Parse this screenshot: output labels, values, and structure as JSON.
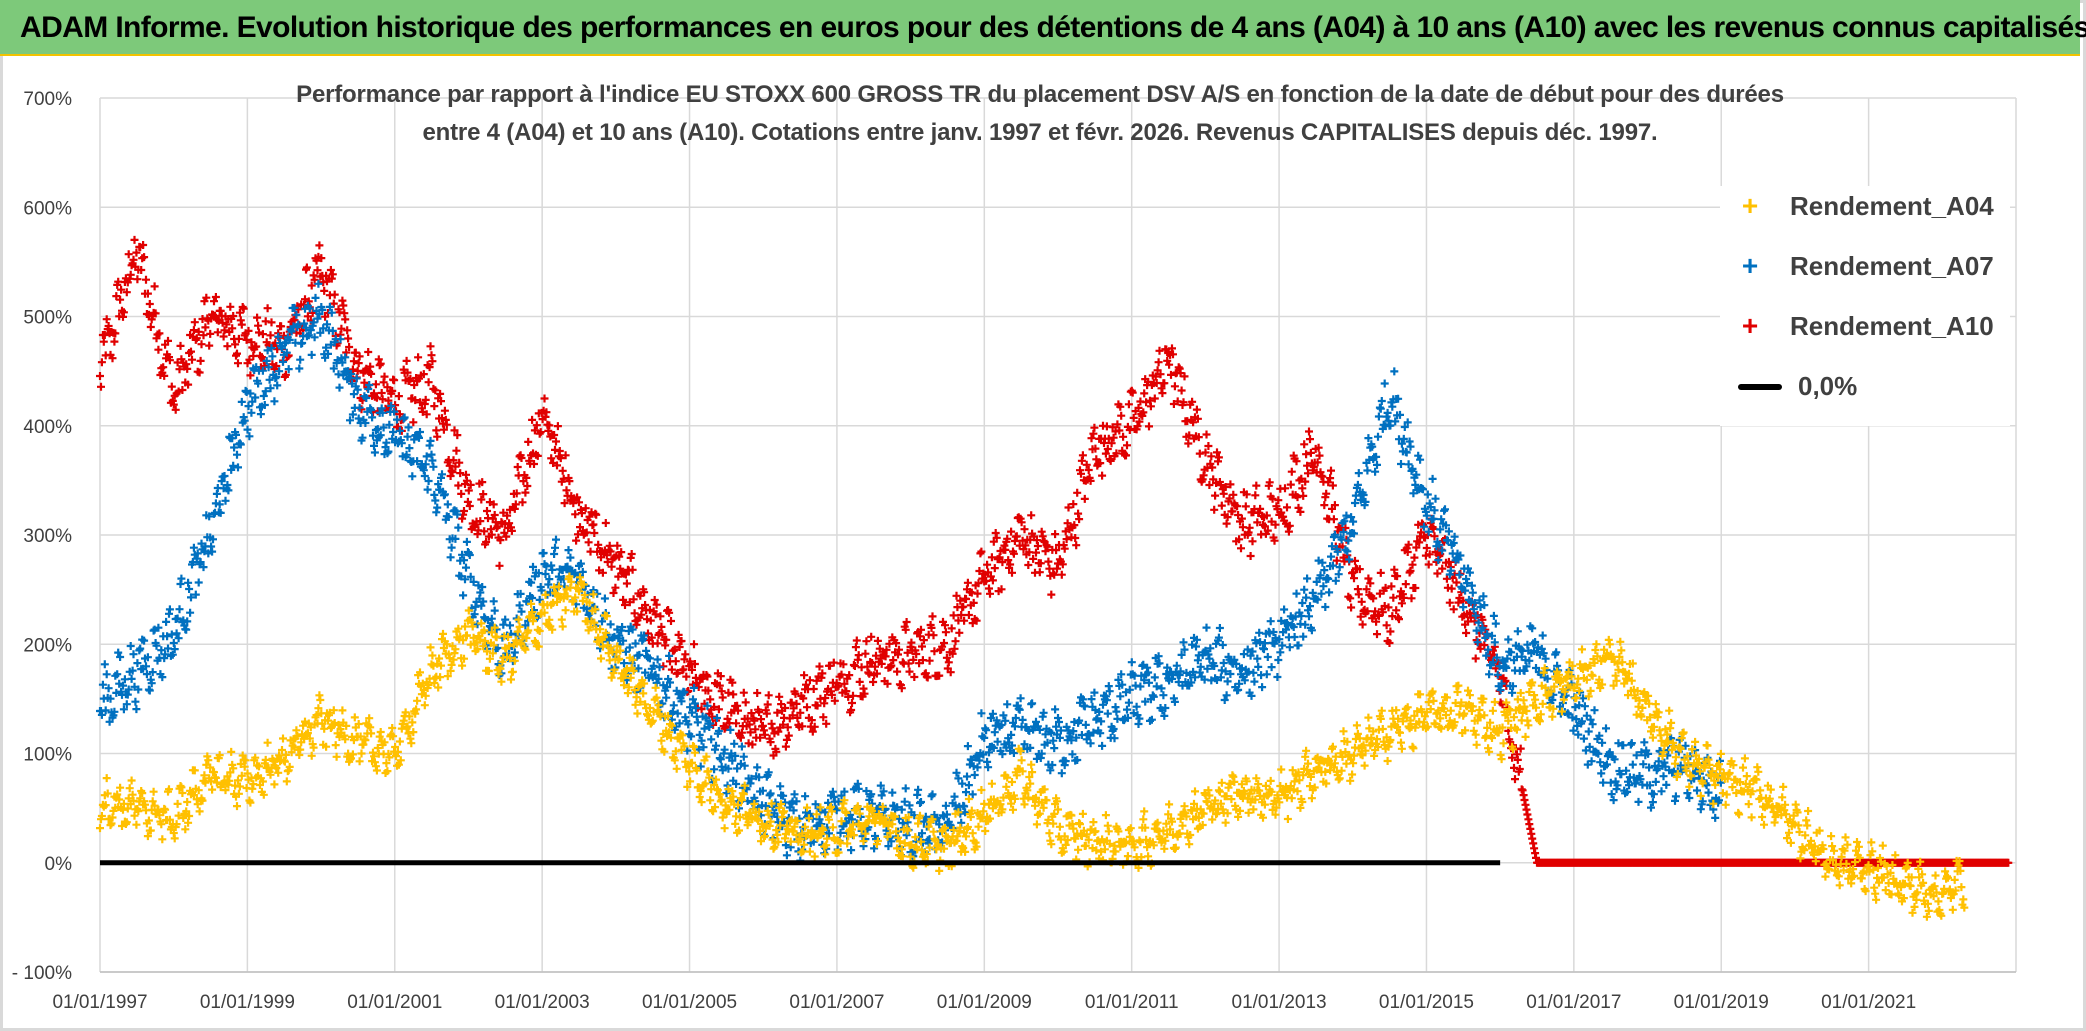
{
  "banner": {
    "title": "ADAM Informe. Evolution historique des performances en euros pour des détentions de 4 ans (A04) à 10 ans (A10) avec les revenus connus capitalisés"
  },
  "chart_data": {
    "type": "scatter",
    "title_line1": "Performance par rapport à l'indice EU STOXX 600 GROSS TR  du placement DSV A/S en fonction de la date de début pour des durées",
    "title_line2": "entre 4 (A04) et 10 ans (A10). Cotations entre janv. 1997 et févr. 2026. Revenus CAPITALISES depuis déc. 1997.",
    "x_ticks": [
      "01/01/1997",
      "01/01/1999",
      "01/01/2001",
      "01/01/2003",
      "01/01/2005",
      "01/01/2007",
      "01/01/2009",
      "01/01/2011",
      "01/01/2013",
      "01/01/2015",
      "01/01/2017",
      "01/01/2019",
      "01/01/2021"
    ],
    "x_range": [
      1997.0,
      2023.0
    ],
    "y_ticks": [
      "700%",
      "600%",
      "500%",
      "400%",
      "300%",
      "200%",
      "100%",
      "0%",
      "- 100%"
    ],
    "y_range": [
      -100,
      700
    ],
    "grid": true,
    "legend_position": "top-right",
    "series": [
      {
        "name": "Rendement_A04",
        "color": "#ffc000",
        "points": [
          [
            1997.0,
            55
          ],
          [
            1997.5,
            50
          ],
          [
            1998.0,
            40
          ],
          [
            1998.5,
            80
          ],
          [
            1999.0,
            75
          ],
          [
            1999.5,
            95
          ],
          [
            2000.0,
            130
          ],
          [
            2000.5,
            110
          ],
          [
            2001.0,
            100
          ],
          [
            2001.5,
            175
          ],
          [
            2002.0,
            210
          ],
          [
            2002.5,
            185
          ],
          [
            2003.0,
            225
          ],
          [
            2003.5,
            250
          ],
          [
            2004.0,
            185
          ],
          [
            2004.5,
            140
          ],
          [
            2005.0,
            90
          ],
          [
            2005.5,
            55
          ],
          [
            2006.0,
            40
          ],
          [
            2006.5,
            25
          ],
          [
            2007.0,
            30
          ],
          [
            2007.5,
            40
          ],
          [
            2008.0,
            20
          ],
          [
            2008.5,
            15
          ],
          [
            2009.0,
            45
          ],
          [
            2009.5,
            80
          ],
          [
            2010.0,
            30
          ],
          [
            2010.5,
            20
          ],
          [
            2011.0,
            15
          ],
          [
            2011.5,
            30
          ],
          [
            2012.0,
            50
          ],
          [
            2012.5,
            65
          ],
          [
            2013.0,
            60
          ],
          [
            2013.5,
            85
          ],
          [
            2014.0,
            100
          ],
          [
            2014.5,
            120
          ],
          [
            2015.0,
            135
          ],
          [
            2015.5,
            140
          ],
          [
            2016.0,
            120
          ],
          [
            2016.5,
            150
          ],
          [
            2017.0,
            165
          ],
          [
            2017.5,
            190
          ],
          [
            2018.0,
            140
          ],
          [
            2018.5,
            95
          ],
          [
            2019.0,
            75
          ],
          [
            2019.5,
            65
          ],
          [
            2020.0,
            35
          ],
          [
            2020.5,
            0
          ],
          [
            2021.0,
            -5
          ],
          [
            2021.5,
            -20
          ],
          [
            2022.0,
            -30
          ],
          [
            2022.3,
            -15
          ]
        ]
      },
      {
        "name": "Rendement_A07",
        "color": "#0070c0",
        "points": [
          [
            1997.0,
            145
          ],
          [
            1997.5,
            175
          ],
          [
            1998.0,
            210
          ],
          [
            1998.5,
            300
          ],
          [
            1999.0,
            420
          ],
          [
            1999.5,
            470
          ],
          [
            2000.0,
            500
          ],
          [
            2000.5,
            420
          ],
          [
            2001.0,
            390
          ],
          [
            2001.5,
            360
          ],
          [
            2002.0,
            260
          ],
          [
            2002.5,
            190
          ],
          [
            2003.0,
            265
          ],
          [
            2003.5,
            260
          ],
          [
            2004.0,
            200
          ],
          [
            2004.5,
            175
          ],
          [
            2005.0,
            130
          ],
          [
            2005.5,
            95
          ],
          [
            2006.0,
            55
          ],
          [
            2006.5,
            30
          ],
          [
            2007.0,
            45
          ],
          [
            2007.5,
            40
          ],
          [
            2008.0,
            35
          ],
          [
            2008.5,
            30
          ],
          [
            2009.0,
            110
          ],
          [
            2009.5,
            120
          ],
          [
            2010.0,
            110
          ],
          [
            2010.5,
            130
          ],
          [
            2011.0,
            150
          ],
          [
            2011.5,
            165
          ],
          [
            2012.0,
            185
          ],
          [
            2012.5,
            175
          ],
          [
            2013.0,
            200
          ],
          [
            2013.5,
            240
          ],
          [
            2014.0,
            310
          ],
          [
            2014.5,
            430
          ],
          [
            2015.0,
            330
          ],
          [
            2015.5,
            260
          ],
          [
            2016.0,
            180
          ],
          [
            2016.5,
            190
          ],
          [
            2017.0,
            140
          ],
          [
            2017.5,
            90
          ],
          [
            2018.0,
            80
          ],
          [
            2018.5,
            90
          ],
          [
            2019.0,
            60
          ]
        ]
      },
      {
        "name": "Rendement_A10",
        "color": "#e00000",
        "points": [
          [
            1997.0,
            450
          ],
          [
            1997.5,
            560
          ],
          [
            1998.0,
            430
          ],
          [
            1998.5,
            500
          ],
          [
            1999.0,
            480
          ],
          [
            1999.5,
            470
          ],
          [
            2000.0,
            540
          ],
          [
            2000.5,
            450
          ],
          [
            2001.0,
            420
          ],
          [
            2001.5,
            440
          ],
          [
            2002.0,
            330
          ],
          [
            2002.5,
            300
          ],
          [
            2003.0,
            410
          ],
          [
            2003.5,
            320
          ],
          [
            2004.0,
            270
          ],
          [
            2004.5,
            220
          ],
          [
            2005.0,
            170
          ],
          [
            2005.5,
            140
          ],
          [
            2006.0,
            120
          ],
          [
            2006.5,
            145
          ],
          [
            2007.0,
            165
          ],
          [
            2007.5,
            185
          ],
          [
            2008.0,
            190
          ],
          [
            2008.5,
            200
          ],
          [
            2009.0,
            260
          ],
          [
            2009.5,
            300
          ],
          [
            2010.0,
            270
          ],
          [
            2010.5,
            380
          ],
          [
            2011.0,
            400
          ],
          [
            2011.5,
            460
          ],
          [
            2012.0,
            370
          ],
          [
            2012.5,
            310
          ],
          [
            2013.0,
            320
          ],
          [
            2013.5,
            380
          ],
          [
            2014.0,
            250
          ],
          [
            2014.5,
            230
          ],
          [
            2015.0,
            300
          ],
          [
            2015.5,
            240
          ],
          [
            2016.0,
            170
          ],
          [
            2016.5,
            0
          ],
          [
            2017.0,
            0
          ],
          [
            2017.5,
            0
          ],
          [
            2018.0,
            0
          ],
          [
            2018.5,
            0
          ],
          [
            2019.0,
            0
          ],
          [
            2019.5,
            0
          ],
          [
            2020.0,
            0
          ],
          [
            2020.5,
            0
          ],
          [
            2021.0,
            0
          ],
          [
            2021.5,
            0
          ],
          [
            2022.0,
            0
          ],
          [
            2022.5,
            0
          ],
          [
            2022.9,
            0
          ]
        ]
      },
      {
        "name": "0,0%",
        "color": "#000000",
        "points": [
          [
            1997.0,
            0
          ],
          [
            2016.0,
            0
          ]
        ]
      }
    ]
  }
}
